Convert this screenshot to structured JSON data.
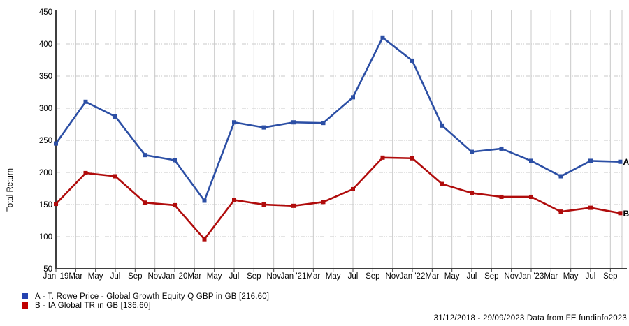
{
  "axis": {
    "y_title": "Total Return"
  },
  "chart_data": {
    "type": "line",
    "ylabel": "Total Return",
    "ylim": [
      50,
      450
    ],
    "ytick_step": 50,
    "y_tick_labels": [
      "50",
      "100",
      "150",
      "200",
      "250",
      "300",
      "350",
      "400",
      "450"
    ],
    "x_tick_labels": [
      "Jan '19",
      "Mar",
      "May",
      "Jul",
      "Sep",
      "Nov",
      "Jan '20",
      "Mar",
      "May",
      "Jul",
      "Sep",
      "Nov",
      "Jan '21",
      "Mar",
      "May",
      "Jul",
      "Sep",
      "Nov",
      "Jan '22",
      "Mar",
      "May",
      "Jul",
      "Sep",
      "Nov",
      "Jan '23",
      "Mar",
      "May",
      "Jul",
      "Sep"
    ],
    "x_period": "31/12/2018 to 29/09/2023, quarterly data points, bi-monthly ticks",
    "grid": {
      "vertical": "solid",
      "horizontal": "dash-dot"
    },
    "gridline_color": "#c9c9c9",
    "axis_color": "#3f3f3f",
    "legend_position": "bottom-left",
    "series": [
      {
        "id": "A",
        "name": "A - T. Rowe Price - Global Growth Equity Q GBP in GB [216.60]",
        "color": "#2c4fa5",
        "end_label": "A",
        "final_value": 216.6,
        "values": [
          245,
          310,
          287,
          227,
          219,
          156,
          278,
          270,
          278,
          277,
          317,
          410,
          374,
          273,
          232,
          237,
          218,
          194,
          218,
          216.6
        ]
      },
      {
        "id": "B",
        "name": "B - IA Global TR in GB [136.60]",
        "color": "#b00c0c",
        "end_label": "B",
        "final_value": 136.6,
        "values": [
          151,
          199,
          194,
          153,
          149,
          96,
          157,
          150,
          148,
          154,
          174,
          223,
          222,
          182,
          168,
          162,
          162,
          139,
          145,
          136.6
        ]
      }
    ]
  },
  "legend": {
    "items": [
      {
        "label": "A - T. Rowe Price - Global Growth Equity Q GBP in GB [216.60]",
        "color": "#2442b0"
      },
      {
        "label": "B - IA Global TR in GB [136.60]",
        "color": "#c00000"
      }
    ]
  },
  "footer": {
    "text": "31/12/2018 - 29/09/2023 Data from FE fundinfo2023"
  }
}
